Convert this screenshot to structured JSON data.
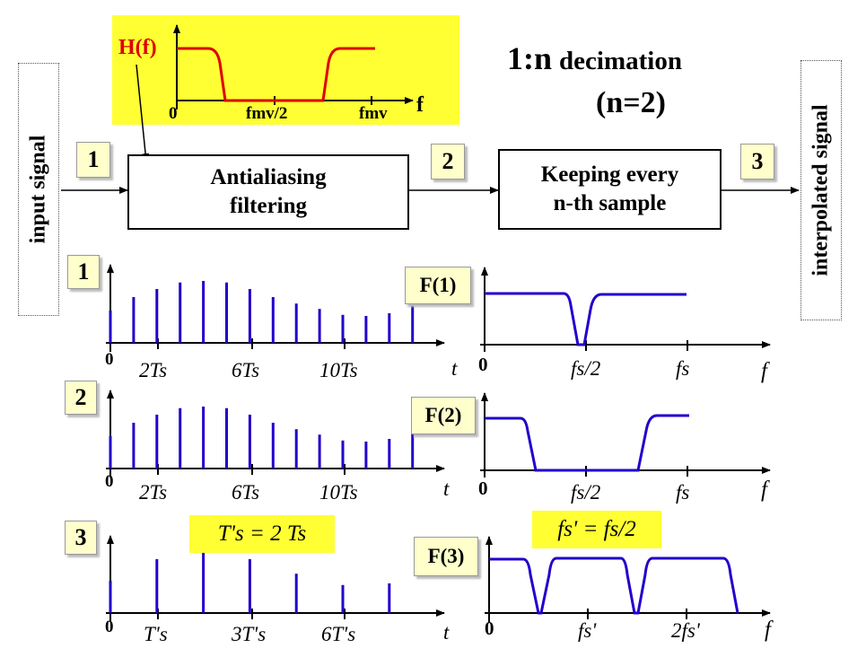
{
  "title": {
    "line1_a": "1:n",
    "line1_b": "decimation",
    "line2": "(n=2)"
  },
  "filter_inset": {
    "label": "H(f)",
    "ticks": {
      "zero": "0",
      "half": "fmv/2",
      "full": "fmv"
    },
    "axis": "f"
  },
  "side_labels": {
    "input": "input signal",
    "output": "interpolated signal"
  },
  "blocks": {
    "antialias": [
      "Antialiasing",
      "filtering"
    ],
    "keep": [
      "Keeping every",
      "n-th sample"
    ]
  },
  "badges": {
    "b1": "1",
    "b2": "2",
    "b3": "3"
  },
  "row_badges": {
    "r1": "1",
    "r2": "2",
    "r3": "3"
  },
  "freq_labels": {
    "f1": "F(1)",
    "f2": "F(2)",
    "f3": "F(3)"
  },
  "time_axes": {
    "row1": {
      "zero": "0",
      "t1": "2Ts",
      "t2": "6Ts",
      "t3": "10Ts",
      "axis": "t"
    },
    "row2": {
      "zero": "0",
      "t1": "2Ts",
      "t2": "6Ts",
      "t3": "10Ts",
      "axis": "t"
    },
    "row3": {
      "zero": "0",
      "t1": "T's",
      "t2": "3T's",
      "t3": "6T's",
      "axis": "t"
    }
  },
  "freq_axes": {
    "row1": {
      "zero": "0",
      "t1": "fs/2",
      "t2": "fs",
      "axis": "f"
    },
    "row2": {
      "zero": "0",
      "t1": "fs/2",
      "t2": "fs",
      "axis": "f"
    },
    "row3": {
      "zero": "0",
      "t1": "fs'",
      "t2": "2fs'",
      "axis": "f"
    }
  },
  "notes": {
    "period": "T's = 2 Ts",
    "rate": "fs' = fs/2"
  },
  "signal_samples": {
    "row1": [
      0.6,
      0.85,
      1.0,
      1.12,
      1.15,
      1.12,
      1.0,
      0.85,
      0.73,
      0.63,
      0.52,
      0.5,
      0.55,
      0.7
    ],
    "row2": [
      0.6,
      0.85,
      1.0,
      1.12,
      1.15,
      1.12,
      1.0,
      0.85,
      0.73,
      0.63,
      0.52,
      0.5,
      0.55,
      0.7
    ],
    "row3": [
      0.6,
      1.0,
      1.15,
      1.0,
      0.73,
      0.52,
      0.55
    ]
  },
  "colors": {
    "signal": "#2200cc",
    "filter": "#dd0000",
    "highlight": "#ffff33",
    "badge": "#ffffcc"
  }
}
